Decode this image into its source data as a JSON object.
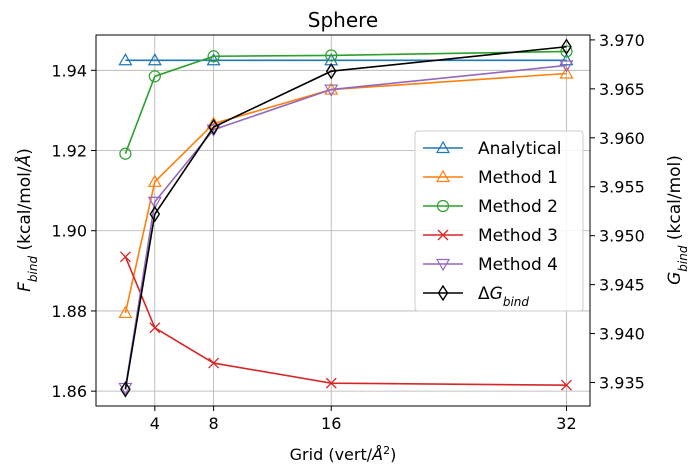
{
  "chart_data": {
    "type": "line",
    "title": "Sphere",
    "xlabel": "Grid (vert/Å²)",
    "ylabel_left": "F_bind (kcal/mol/Å)",
    "ylabel_right": "G_bind (kcal/mol)",
    "xlim": [
      0,
      33.6
    ],
    "ylim_left": [
      1.8563,
      1.9488
    ],
    "ylim_right": [
      3.9326,
      3.9705
    ],
    "xticks": [
      4,
      8,
      16,
      32
    ],
    "xtick_labels": [
      "4",
      "8",
      "16",
      "32"
    ],
    "yticks_left": [
      1.86,
      1.88,
      1.9,
      1.92,
      1.94
    ],
    "ytick_labels_left": [
      "1.86",
      "1.88",
      "1.90",
      "1.92",
      "1.94"
    ],
    "yticks_right": [
      3.935,
      3.94,
      3.945,
      3.95,
      3.955,
      3.96,
      3.965,
      3.97
    ],
    "ytick_labels_right": [
      "3.935",
      "3.940",
      "3.945",
      "3.950",
      "3.955",
      "3.960",
      "3.965",
      "3.970"
    ],
    "grid": true,
    "legend_position": "center-right",
    "x": [
      2,
      4,
      8,
      16,
      32
    ],
    "series": [
      {
        "name": "Analytical",
        "axis": "left",
        "color": "#1f77b4",
        "marker": "triangle-up",
        "values": [
          1.9425,
          1.9425,
          1.9425,
          1.9425,
          1.9425
        ]
      },
      {
        "name": "Method 1",
        "axis": "left",
        "color": "#ff7f0e",
        "marker": "triangle-up",
        "values": [
          1.8795,
          1.9122,
          1.9267,
          1.9352,
          1.9392
        ]
      },
      {
        "name": "Method 2",
        "axis": "left",
        "color": "#2ca02c",
        "marker": "circle",
        "values": [
          1.9192,
          1.9385,
          1.9435,
          1.9437,
          1.9447
        ]
      },
      {
        "name": "Method 3",
        "axis": "left",
        "color": "#d62728",
        "marker": "x",
        "values": [
          1.8935,
          1.8758,
          1.867,
          1.862,
          1.8615
        ]
      },
      {
        "name": "Method 4",
        "axis": "left",
        "color": "#9467bd",
        "marker": "triangle-down",
        "values": [
          1.8608,
          1.9072,
          1.9252,
          1.9352,
          1.9412
        ]
      },
      {
        "name": "ΔG_bind",
        "axis": "right",
        "color": "#000000",
        "marker": "diamond",
        "values": [
          3.9343,
          3.9522,
          3.9611,
          3.9668,
          3.9693
        ]
      }
    ]
  }
}
